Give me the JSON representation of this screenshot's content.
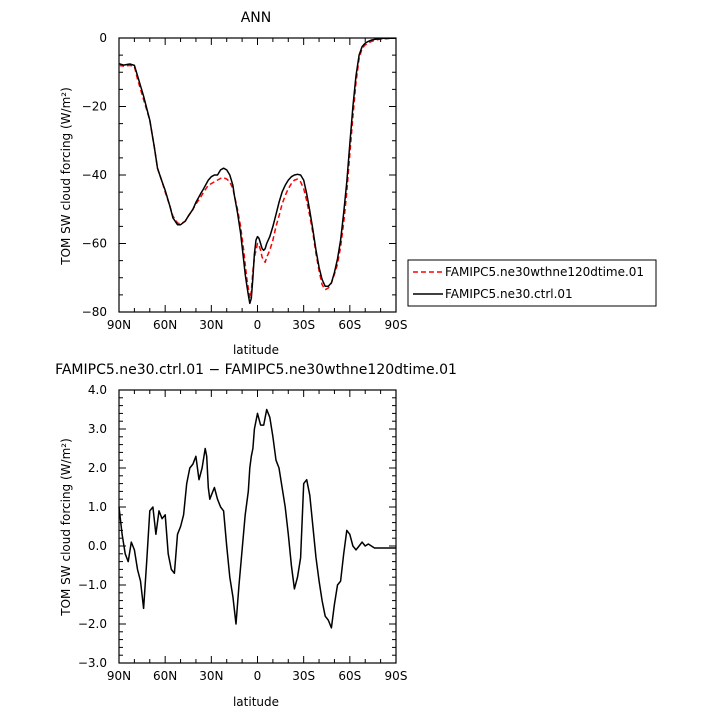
{
  "chart_data": [
    {
      "type": "line",
      "title": "ANN",
      "xlabel": "latitude",
      "ylabel": "TOM SW cloud forcing (W/m²)",
      "xlim": [
        90,
        -90
      ],
      "ylim": [
        -80,
        0
      ],
      "xticks": [
        {
          "value": 90,
          "label": "90N"
        },
        {
          "value": 60,
          "label": "60N"
        },
        {
          "value": 30,
          "label": "30N"
        },
        {
          "value": 0,
          "label": "0"
        },
        {
          "value": -30,
          "label": "30S"
        },
        {
          "value": -60,
          "label": "60S"
        },
        {
          "value": -90,
          "label": "90S"
        }
      ],
      "yticks": [
        {
          "value": 0,
          "label": "0"
        },
        {
          "value": -20,
          "label": "−20"
        },
        {
          "value": -40,
          "label": "−40"
        },
        {
          "value": -60,
          "label": "−60"
        },
        {
          "value": -80,
          "label": "−80"
        }
      ],
      "legend": {
        "position": "right"
      },
      "series": [
        {
          "name": "FAMIPC5.ne30wthne120dtime.01",
          "color": "#ff0000",
          "dash": "dashed",
          "x": [
            90,
            87,
            83,
            80,
            78,
            74,
            70,
            67,
            65,
            62,
            60,
            57,
            55,
            52,
            50,
            47,
            45,
            42,
            40,
            37,
            35,
            32,
            30,
            28,
            26,
            24,
            22,
            20,
            18,
            16,
            15,
            13,
            11,
            9,
            8,
            7,
            6,
            5,
            4,
            3,
            2,
            1,
            0,
            -1,
            -2,
            -3,
            -4,
            -5,
            -6,
            -8,
            -10,
            -12,
            -14,
            -16,
            -18,
            -20,
            -22,
            -24,
            -26,
            -28,
            -30,
            -32,
            -34,
            -36,
            -38,
            -40,
            -42,
            -44,
            -46,
            -48,
            -50,
            -52,
            -54,
            -56,
            -58,
            -60,
            -62,
            -64,
            -66,
            -68,
            -70,
            -72,
            -74,
            -76,
            -78,
            -80,
            -82,
            -84,
            -86,
            -88,
            -90
          ],
          "y": [
            -8,
            -8.2,
            -8,
            -8.3,
            -12,
            -18,
            -24,
            -32,
            -38,
            -42,
            -45,
            -49,
            -52,
            -54,
            -54.3,
            -53.5,
            -52,
            -50,
            -48.5,
            -46.5,
            -45,
            -43,
            -42.5,
            -42,
            -41.5,
            -41,
            -40.8,
            -41.2,
            -42,
            -44,
            -46,
            -50,
            -55,
            -62,
            -66,
            -70,
            -73,
            -76,
            -74,
            -68,
            -64,
            -62,
            -60,
            -60.5,
            -62,
            -64,
            -65,
            -65.5,
            -64,
            -62,
            -59,
            -55,
            -52,
            -48.5,
            -46,
            -44,
            -42.5,
            -41.5,
            -41.2,
            -42,
            -44,
            -47.5,
            -52,
            -57,
            -63,
            -68,
            -72,
            -73.5,
            -73,
            -71.5,
            -69,
            -66,
            -61,
            -54,
            -45,
            -34,
            -23,
            -13,
            -6,
            -3,
            -2,
            -1.5,
            -1,
            -0.7,
            -0.5,
            -0.3,
            -0.2,
            -0.2,
            -0.1,
            -0.1,
            -0.1
          ]
        },
        {
          "name": "FAMIPC5.ne30.ctrl.01",
          "color": "#000000",
          "dash": "solid",
          "x": [
            90,
            87,
            83,
            80,
            78,
            74,
            70,
            67,
            65,
            62,
            60,
            57,
            55,
            52,
            50,
            47,
            45,
            42,
            40,
            37,
            35,
            32,
            30,
            28,
            26,
            24,
            22,
            20,
            18,
            16,
            15,
            13,
            11,
            9,
            8,
            7,
            6,
            5,
            4,
            3,
            2,
            1,
            0,
            -1,
            -2,
            -3,
            -4,
            -5,
            -6,
            -8,
            -10,
            -12,
            -14,
            -16,
            -18,
            -20,
            -22,
            -24,
            -26,
            -28,
            -30,
            -32,
            -34,
            -36,
            -38,
            -40,
            -42,
            -44,
            -46,
            -48,
            -50,
            -52,
            -54,
            -56,
            -58,
            -60,
            -62,
            -64,
            -66,
            -68,
            -70,
            -72,
            -74,
            -76,
            -78,
            -80,
            -82,
            -84,
            -86,
            -88,
            -90
          ],
          "y": [
            -7.5,
            -7.9,
            -7.6,
            -8,
            -11,
            -17,
            -24,
            -32,
            -38,
            -42,
            -44.5,
            -49,
            -52.5,
            -54.5,
            -54.5,
            -53.5,
            -52,
            -50,
            -48,
            -45.5,
            -44,
            -41.5,
            -40.5,
            -40,
            -40,
            -38.5,
            -38,
            -38.5,
            -40,
            -43,
            -46,
            -51,
            -57,
            -65,
            -69,
            -72,
            -75,
            -77.5,
            -76,
            -70,
            -63,
            -59,
            -58,
            -58.5,
            -60,
            -61.5,
            -62,
            -61.5,
            -60,
            -58,
            -55,
            -51.5,
            -48,
            -45,
            -43,
            -41.5,
            -40.5,
            -40,
            -39.8,
            -40,
            -41.5,
            -45.5,
            -50.5,
            -56,
            -62,
            -67,
            -70.5,
            -72.5,
            -72.5,
            -71.5,
            -68.5,
            -64.5,
            -59,
            -51,
            -42,
            -31,
            -20,
            -11,
            -5,
            -2.5,
            -1.5,
            -1,
            -0.6,
            -0.4,
            -0.3,
            -0.2,
            -0.1,
            -0.1,
            -0.1,
            -0.1,
            -0.1
          ]
        }
      ]
    },
    {
      "type": "line",
      "title": "FAMIPC5.ne30.ctrl.01 − FAMIPC5.ne30wthne120dtime.01",
      "xlabel": "latitude",
      "ylabel": "TOM SW cloud forcing (W/m²)",
      "xlim": [
        90,
        -90
      ],
      "ylim": [
        -3,
        4
      ],
      "xticks": [
        {
          "value": 90,
          "label": "90N"
        },
        {
          "value": 60,
          "label": "60N"
        },
        {
          "value": 30,
          "label": "30N"
        },
        {
          "value": 0,
          "label": "0"
        },
        {
          "value": -30,
          "label": "30S"
        },
        {
          "value": -60,
          "label": "60S"
        },
        {
          "value": -90,
          "label": "90S"
        }
      ],
      "yticks": [
        {
          "value": 4,
          "label": "4.0"
        },
        {
          "value": 3,
          "label": "3.0"
        },
        {
          "value": 2,
          "label": "2.0"
        },
        {
          "value": 1,
          "label": "1.0"
        },
        {
          "value": 0,
          "label": "0.0"
        },
        {
          "value": -1,
          "label": "−1.0"
        },
        {
          "value": -2,
          "label": "−2.0"
        },
        {
          "value": -3,
          "label": "−3.0"
        }
      ],
      "series": [
        {
          "color": "#000000",
          "dash": "solid",
          "x": [
            90,
            88,
            86,
            84,
            82,
            80,
            78,
            76,
            74,
            72,
            70,
            68,
            66,
            64,
            62,
            60,
            58,
            56,
            54,
            52,
            50,
            48,
            46,
            44,
            42,
            40,
            38,
            36,
            34,
            33,
            32,
            31,
            30,
            28,
            26,
            24,
            22,
            20,
            18,
            16,
            14,
            12,
            10,
            8,
            6,
            5,
            4,
            3,
            2,
            0,
            -2,
            -4,
            -6,
            -8,
            -10,
            -12,
            -14,
            -16,
            -18,
            -20,
            -22,
            -24,
            -26,
            -28,
            -30,
            -32,
            -34,
            -36,
            -38,
            -40,
            -42,
            -44,
            -46,
            -48,
            -50,
            -52,
            -54,
            -56,
            -58,
            -60,
            -62,
            -64,
            -66,
            -68,
            -70,
            -72,
            -74,
            -76,
            -78,
            -80,
            -82,
            -84,
            -86,
            -88,
            -90
          ],
          "y": [
            1.0,
            0.3,
            -0.2,
            -0.4,
            0.1,
            -0.1,
            -0.6,
            -0.9,
            -1.6,
            -0.4,
            0.9,
            1.0,
            0.3,
            0.9,
            0.7,
            0.8,
            -0.2,
            -0.6,
            -0.7,
            0.3,
            0.5,
            0.8,
            1.6,
            2.0,
            2.1,
            2.3,
            1.7,
            2.0,
            2.5,
            2.3,
            1.5,
            1.2,
            1.3,
            1.5,
            1.2,
            1.0,
            0.9,
            0.0,
            -0.8,
            -1.3,
            -2.0,
            -1.0,
            -0.1,
            0.8,
            1.4,
            2.0,
            2.3,
            2.5,
            3.0,
            3.4,
            3.1,
            3.1,
            3.5,
            3.3,
            2.8,
            2.2,
            2.0,
            1.5,
            1.0,
            0.3,
            -0.5,
            -1.1,
            -0.8,
            -0.3,
            1.6,
            1.7,
            1.3,
            0.5,
            -0.3,
            -0.9,
            -1.4,
            -1.8,
            -1.9,
            -2.1,
            -1.5,
            -1.0,
            -0.9,
            -0.2,
            0.4,
            0.3,
            0.0,
            -0.1,
            0.0,
            0.1,
            0.0,
            0.05,
            0.0,
            -0.05,
            -0.05,
            -0.05,
            -0.05,
            -0.05,
            -0.05,
            -0.05,
            -0.05
          ]
        }
      ]
    }
  ]
}
